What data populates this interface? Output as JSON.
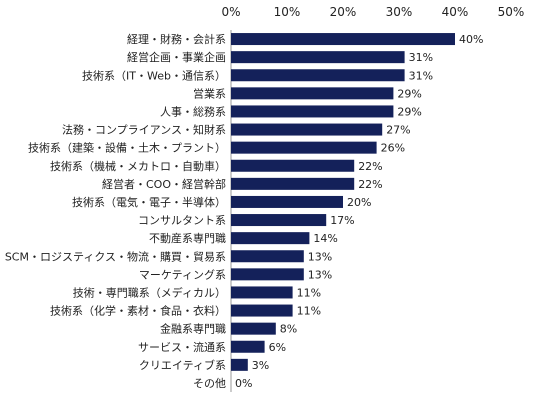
{
  "chart_data": {
    "type": "bar",
    "orientation": "horizontal",
    "title": "",
    "xlabel": "",
    "ylabel": "",
    "xlim": [
      0,
      50
    ],
    "ticks": [
      0,
      10,
      20,
      30,
      40,
      50
    ],
    "tick_labels": [
      "0%",
      "10%",
      "20%",
      "30%",
      "40%",
      "50%"
    ],
    "axis_position": "top",
    "grid": false,
    "legend": "none",
    "bar_color": "#14215a",
    "categories": [
      "経理・財務・会計系",
      "経営企画・事業企画",
      "技術系（IT・Web・通信系）",
      "営業系",
      "人事・総務系",
      "法務・コンプライアンス・知財系",
      "技術系（建築・設備・土木・プラント）",
      "技術系（機械・メカトロ・自動車）",
      "経営者・COO・経営幹部",
      "技術系（電気・電子・半導体）",
      "コンサルタント系",
      "不動産系専門職",
      "SCM・ロジスティクス・物流・購買・貿易系",
      "マーケティング系",
      "技術・専門職系（メディカル）",
      "技術系（化学・素材・食品・衣料）",
      "金融系専門職",
      "サービス・流通系",
      "クリエイティブ系",
      "その他"
    ],
    "values": [
      40,
      31,
      31,
      29,
      29,
      27,
      26,
      22,
      22,
      20,
      17,
      14,
      13,
      13,
      11,
      11,
      8,
      6,
      3,
      0
    ],
    "value_labels": [
      "40%",
      "31%",
      "31%",
      "29%",
      "29%",
      "27%",
      "26%",
      "22%",
      "22%",
      "20%",
      "17%",
      "14%",
      "13%",
      "13%",
      "11%",
      "11%",
      "8%",
      "6%",
      "3%",
      "0%"
    ]
  }
}
